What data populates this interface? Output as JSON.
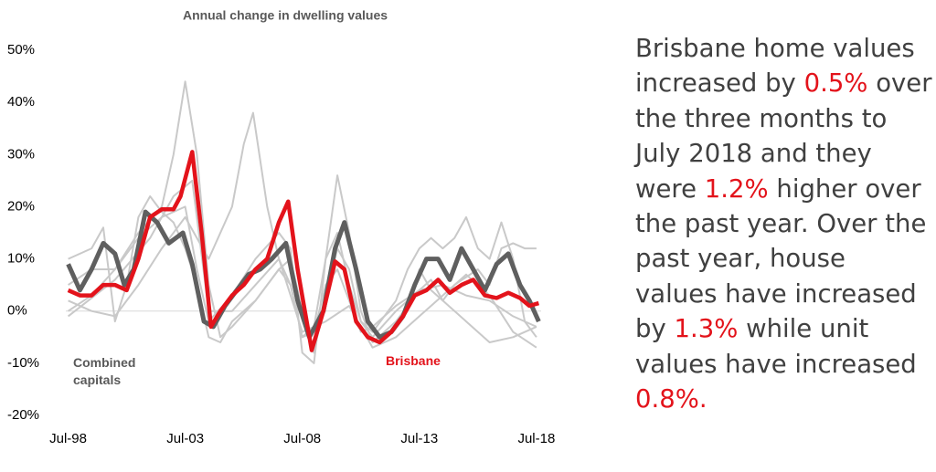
{
  "chart_data": {
    "type": "line",
    "title": "Annual change in dwelling values",
    "xlim": [
      1998.4,
      2018.7
    ],
    "ylim": [
      -20,
      50
    ],
    "xticks": [
      {
        "value": 1998.5,
        "label": "Jul-98"
      },
      {
        "value": 2003.5,
        "label": "Jul-03"
      },
      {
        "value": 2008.5,
        "label": "Jul-08"
      },
      {
        "value": 2013.5,
        "label": "Jul-13"
      },
      {
        "value": 2018.5,
        "label": "Jul-18"
      }
    ],
    "yticks": [
      {
        "value": -20,
        "label": "-20%"
      },
      {
        "value": -10,
        "label": "-10%"
      },
      {
        "value": 0,
        "label": "0%"
      },
      {
        "value": 10,
        "label": "10%"
      },
      {
        "value": 20,
        "label": "20%"
      },
      {
        "value": 30,
        "label": "30%"
      },
      {
        "value": 40,
        "label": "40%"
      },
      {
        "value": 50,
        "label": "50%"
      }
    ],
    "series": [
      {
        "color": "#c9c9c9",
        "x": [
          1998.5,
          1999.5,
          2000.5,
          2001.5,
          2002.5,
          2003.0,
          2003.5,
          2004.0,
          2004.5,
          2005.0,
          2005.5,
          2006.5,
          2007.5,
          2008.0,
          2008.5,
          2009.0,
          2009.5,
          2010.0,
          2010.5,
          2011.0,
          2011.5,
          2012.5,
          2013.5,
          2014.5,
          2015.5,
          2016.5,
          2017.5,
          2018.5
        ],
        "values": [
          0,
          3,
          8,
          15,
          20,
          30,
          44,
          30,
          5,
          -5,
          -3,
          2,
          8,
          10,
          0,
          -8,
          3,
          12,
          8,
          -2,
          -5,
          0,
          4,
          5,
          3,
          2,
          -1,
          -3
        ]
      },
      {
        "color": "#c9c9c9",
        "x": [
          1998.5,
          1999.5,
          2000.5,
          2001.5,
          2002.5,
          2003.5,
          2004.5,
          2005.5,
          2006.0,
          2006.4,
          2007.0,
          2007.5,
          2008.0,
          2008.5,
          2009.0,
          2009.5,
          2010.0,
          2010.5,
          2011.0,
          2011.5,
          2012.5,
          2013.5,
          2014.0,
          2014.5,
          2015.5,
          2016.5,
          2017.5,
          2018.5
        ],
        "values": [
          2,
          0,
          -1,
          5,
          12,
          18,
          10,
          20,
          32,
          38,
          20,
          10,
          5,
          -5,
          -4,
          5,
          8,
          2,
          -4,
          -3,
          1,
          4,
          6,
          2,
          -2,
          -6,
          -5,
          -3
        ]
      },
      {
        "color": "#c9c9c9",
        "x": [
          1998.5,
          1999.5,
          2000.0,
          2000.5,
          2001.0,
          2001.5,
          2002.0,
          2002.5,
          2003.0,
          2003.5,
          2004.0,
          2004.5,
          2005.0,
          2005.5,
          2006.5,
          2007.5,
          2008.0,
          2008.5,
          2009.0,
          2009.5,
          2010.0,
          2010.5,
          2011.0,
          2011.5,
          2012.5,
          2013.0,
          2013.5,
          2014.0,
          2014.5,
          2015.0,
          2015.5,
          2016.0,
          2016.5,
          2017.0,
          2017.5,
          2018.0,
          2018.5
        ],
        "values": [
          10,
          12,
          16,
          -2,
          5,
          18,
          22,
          19,
          17,
          12,
          5,
          -5,
          -6,
          -2,
          2,
          8,
          5,
          -5,
          -3,
          10,
          15,
          5,
          -2,
          -4,
          2,
          8,
          12,
          14,
          12,
          14,
          18,
          12,
          10,
          17,
          10,
          -2,
          -5
        ]
      },
      {
        "color": "#c9c9c9",
        "x": [
          1998.5,
          1999.5,
          2000.5,
          2001.5,
          2002.5,
          2003.5,
          2004.0,
          2004.5,
          2005.5,
          2006.5,
          2007.5,
          2008.0,
          2008.5,
          2009.0,
          2009.5,
          2010.0,
          2010.5,
          2011.0,
          2011.5,
          2012.5,
          2013.0,
          2013.5,
          2014.0,
          2014.5,
          2015.0,
          2016.0,
          2016.5,
          2017.0,
          2017.5,
          2018.0,
          2018.5
        ],
        "values": [
          5,
          8,
          8,
          14,
          18,
          20,
          8,
          -2,
          3,
          10,
          15,
          12,
          -8,
          -10,
          10,
          26,
          15,
          0,
          -6,
          -2,
          1,
          8,
          4,
          2,
          5,
          8,
          5,
          12,
          13,
          12,
          12
        ]
      },
      {
        "color": "#c9c9c9",
        "x": [
          1998.5,
          2000.5,
          2002.0,
          2003.0,
          2003.8,
          2004.5,
          2005.5,
          2006.5,
          2007.5,
          2008.5,
          2009.5,
          2010.5,
          2011.5,
          2012.5,
          2013.5,
          2014.5,
          2015.5,
          2016.5,
          2017.5,
          2018.5
        ],
        "values": [
          -1,
          6,
          14,
          22,
          25,
          0,
          0,
          5,
          10,
          -4,
          -2,
          1,
          -7,
          -5,
          -1,
          3,
          7,
          3,
          -4,
          -7
        ]
      },
      {
        "name": "Combined capitals",
        "color": "#5f5f5f",
        "x": [
          1998.5,
          1999.0,
          1999.5,
          2000.0,
          2000.5,
          2000.9,
          2001.3,
          2001.8,
          2002.3,
          2002.8,
          2003.4,
          2003.8,
          2004.3,
          2004.7,
          2005.2,
          2005.7,
          2006.2,
          2006.7,
          2007.2,
          2007.8,
          2008.3,
          2008.8,
          2009.4,
          2009.9,
          2010.3,
          2010.8,
          2011.3,
          2011.8,
          2012.3,
          2012.8,
          2013.3,
          2013.8,
          2014.3,
          2014.8,
          2015.3,
          2015.8,
          2016.3,
          2016.8,
          2017.3,
          2017.8,
          2018.2,
          2018.6
        ],
        "values": [
          9,
          4,
          8,
          13,
          11,
          5,
          8,
          19,
          17,
          13,
          15,
          9,
          -2,
          -3,
          1,
          4,
          7,
          8,
          10,
          13,
          2,
          -5,
          0,
          12,
          17,
          8,
          -2,
          -5,
          -4,
          -1,
          5,
          10,
          10,
          6,
          12,
          8,
          4,
          9,
          11,
          5,
          2,
          -2
        ]
      },
      {
        "name": "Brisbane",
        "color": "#e3131b",
        "x": [
          1998.5,
          1999.0,
          1999.5,
          2000.0,
          2000.5,
          2001.0,
          2001.5,
          2002.0,
          2002.5,
          2003.0,
          2003.3,
          2003.8,
          2004.2,
          2004.6,
          2005.0,
          2005.5,
          2006.0,
          2006.5,
          2007.0,
          2007.5,
          2007.9,
          2008.3,
          2008.9,
          2009.4,
          2009.9,
          2010.3,
          2010.8,
          2011.3,
          2011.8,
          2012.3,
          2012.8,
          2013.3,
          2013.8,
          2014.3,
          2014.8,
          2015.3,
          2015.8,
          2016.3,
          2016.8,
          2017.3,
          2017.8,
          2018.2,
          2018.6
        ],
        "values": [
          4,
          3,
          3,
          5,
          5,
          4,
          10,
          18,
          19.5,
          19.5,
          22,
          30.5,
          15,
          -3,
          0,
          3,
          5,
          8,
          10,
          17,
          21,
          8,
          -7.5,
          0,
          9.5,
          8,
          -2,
          -5,
          -6,
          -4,
          -1,
          3,
          4,
          6,
          3.5,
          5,
          6,
          3,
          2.5,
          3.5,
          2.5,
          1,
          1.5
        ]
      }
    ]
  },
  "commentary": [
    {
      "text": "Brisbane home values increased by ",
      "color": "#404040"
    },
    {
      "text": "0.5%",
      "color": "#e3131b"
    },
    {
      "text": " over the three months to July 2018 and they were ",
      "color": "#404040"
    },
    {
      "text": "1.2%",
      "color": "#e3131b"
    },
    {
      "text": " higher over the past year. Over the past year, house values have increased by ",
      "color": "#404040"
    },
    {
      "text": "1.3%",
      "color": "#e3131b"
    },
    {
      "text": " while unit values have increased ",
      "color": "#404040"
    },
    {
      "text": "0.8%.",
      "color": "#e3131b"
    }
  ]
}
